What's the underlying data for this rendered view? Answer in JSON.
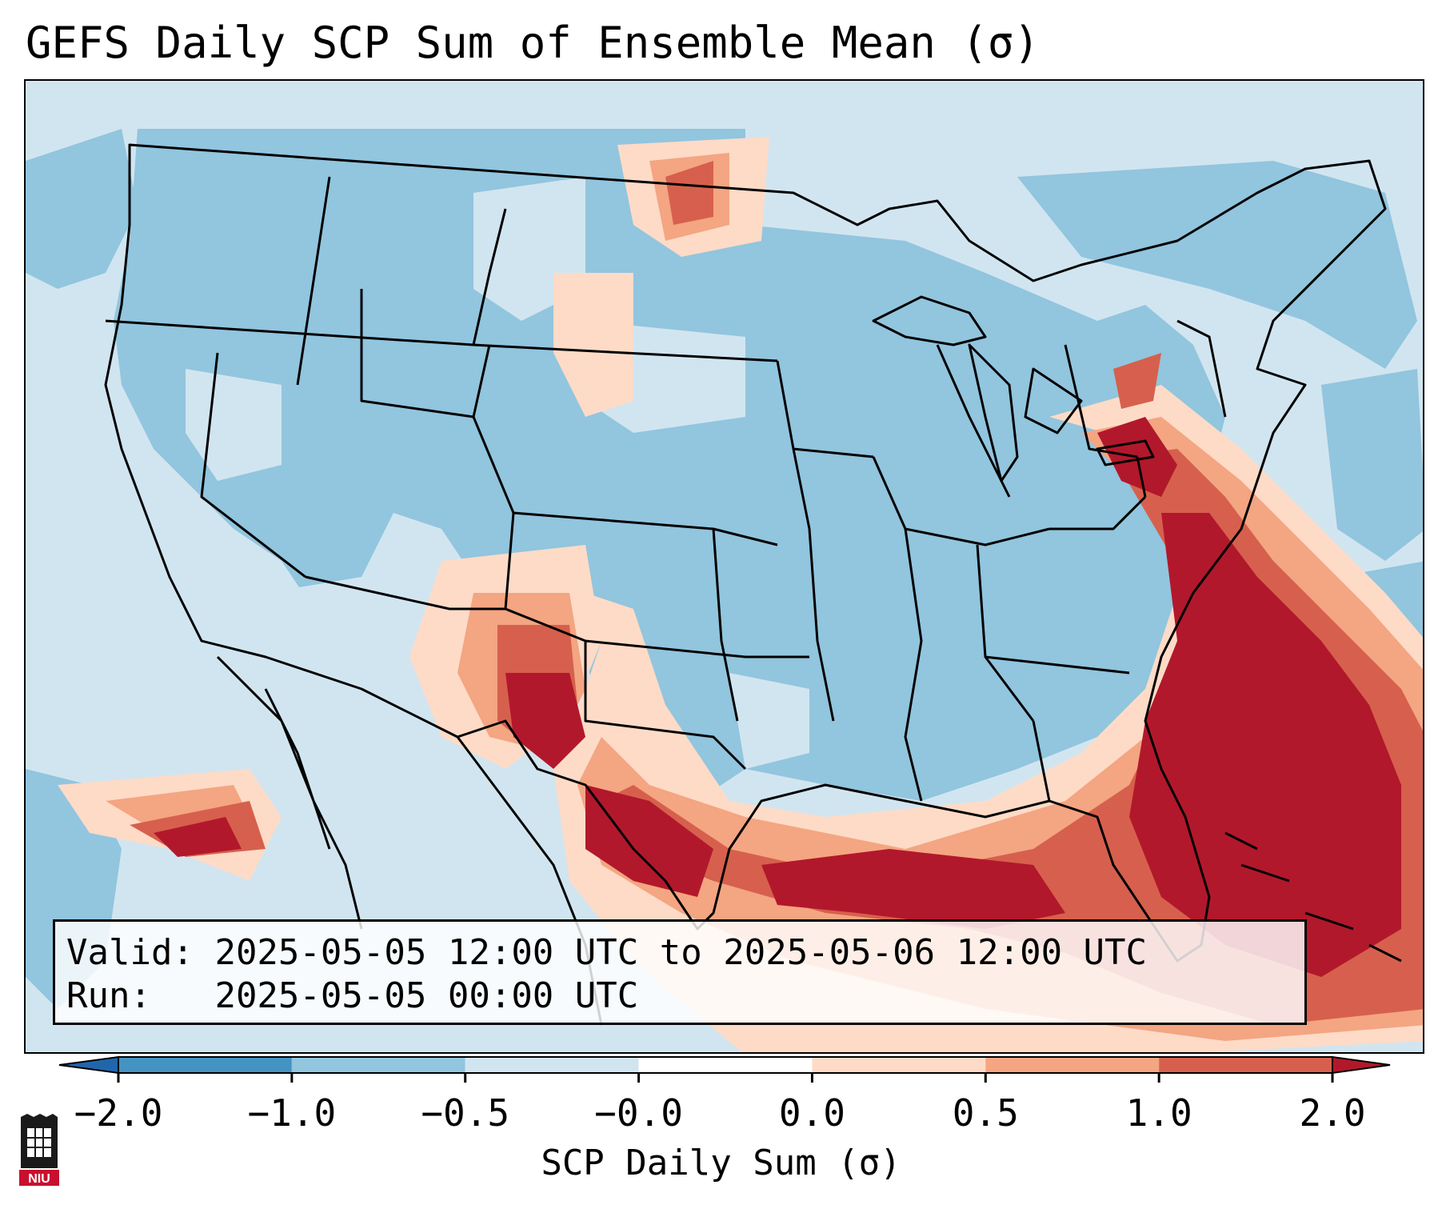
{
  "title": "GEFS Daily SCP Sum of Ensemble Mean (σ)",
  "map": {
    "description_region": "Continental United States",
    "colors": {
      "below_-1": "#4393c3",
      "-1_to_-0.5": "#92c5de",
      "-0.5_to_0": "#d1e5f0",
      "0_to_0.5": "#fddbc7",
      "0.5_to_1": "#f4a582",
      "1_to_2": "#d6604d",
      "above_2": "#b2182b",
      "extend_low": "#2166ac",
      "extend_high": "#b2182b"
    }
  },
  "info_box": {
    "valid_label": "Valid:",
    "valid_text": "2025-05-05 12:00 UTC to 2025-05-06 12:00 UTC",
    "run_label": "Run:",
    "run_text": "2025-05-05 00:00 UTC"
  },
  "colorbar": {
    "ticks": [
      "−2.0",
      "−1.0",
      "−0.5",
      "−0.0",
      "0.0",
      "0.5",
      "1.0",
      "2.0"
    ],
    "label": "SCP Daily Sum (σ)",
    "bins": [
      "#4393c3",
      "#92c5de",
      "#d1e5f0",
      "#ffffff",
      "#fddbc7",
      "#f4a582",
      "#d6604d"
    ]
  },
  "logo": {
    "text": "NIU",
    "icon": "niu-tower-logo-icon"
  }
}
